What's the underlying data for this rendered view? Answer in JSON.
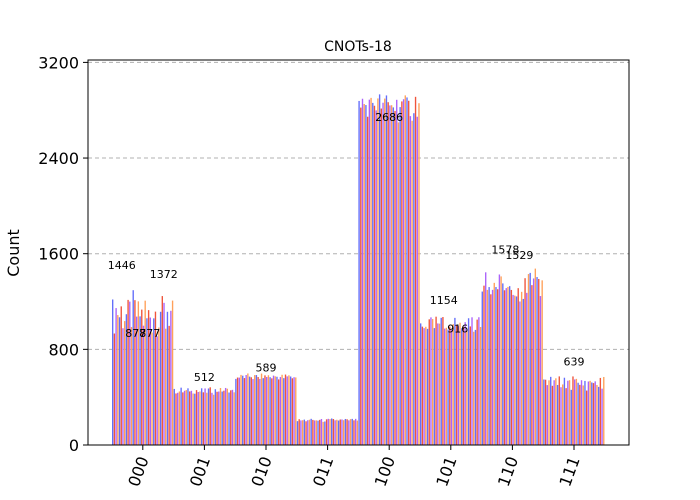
{
  "chart_data": {
    "type": "bar",
    "title": "CNOTs-18",
    "xlabel": "",
    "ylabel": "Count",
    "ylim": [
      0,
      3220
    ],
    "yticks": [
      0,
      800,
      1600,
      2400,
      3200
    ],
    "ytick_labels": [
      "0",
      "800",
      "1600",
      "2400",
      "3200"
    ],
    "grid": "y-dashed",
    "series_colors": [
      "#636efa",
      "#ef553b",
      "#ab63fa",
      "#ffa15a"
    ],
    "categories": [
      "000",
      "001",
      "010",
      "011",
      "100",
      "101",
      "110",
      "111"
    ],
    "bars_per_category": 36,
    "groups": [
      {
        "category": "000",
        "min": 877,
        "max": 1446,
        "shown_labels": [
          "1446",
          "877",
          "877",
          "1372"
        ]
      },
      {
        "category": "001",
        "min": 420,
        "max": 512,
        "shown_labels": [
          "512"
        ]
      },
      {
        "category": "010",
        "min": 540,
        "max": 620,
        "shown_labels": [
          "589"
        ]
      },
      {
        "category": "011",
        "min": 190,
        "max": 235,
        "shown_labels": []
      },
      {
        "category": "100",
        "min": 2686,
        "max": 3090,
        "shown_labels": [
          "2686"
        ]
      },
      {
        "category": "101",
        "min": 916,
        "max": 1154,
        "shown_labels": [
          "1154",
          "916"
        ]
      },
      {
        "category": "110",
        "min": 1180,
        "max": 1578,
        "shown_labels": [
          "1578",
          "1529"
        ]
      },
      {
        "category": "111",
        "min": 450,
        "max": 639,
        "shown_labels": [
          "639"
        ]
      }
    ]
  }
}
